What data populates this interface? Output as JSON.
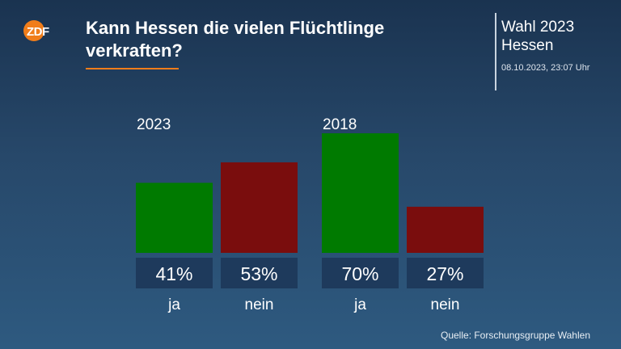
{
  "header": {
    "logo_text": "ZDF",
    "title_line1": "Kann Hessen die vielen Flüchtlinge",
    "title_line2": "verkraften?",
    "wahl_line1": "Wahl 2023",
    "wahl_line2": "Hessen",
    "timestamp": "08.10.2023, 23:07 Uhr"
  },
  "colors": {
    "ja": "#007a00",
    "nein": "#7a0d0d",
    "value_box": "#1e3a5c",
    "accent": "#f07d1a"
  },
  "chart_data": {
    "type": "bar",
    "groups": [
      {
        "label": "2023",
        "bars": [
          {
            "category": "ja",
            "value": 41,
            "value_label": "41%"
          },
          {
            "category": "nein",
            "value": 53,
            "value_label": "53%"
          }
        ]
      },
      {
        "label": "2018",
        "bars": [
          {
            "category": "ja",
            "value": 70,
            "value_label": "70%"
          },
          {
            "category": "nein",
            "value": 27,
            "value_label": "27%"
          }
        ]
      }
    ],
    "ylim": [
      0,
      100
    ],
    "grid": false,
    "legend": "none"
  },
  "footer": {
    "source": "Quelle: Forschungsgruppe Wahlen"
  }
}
